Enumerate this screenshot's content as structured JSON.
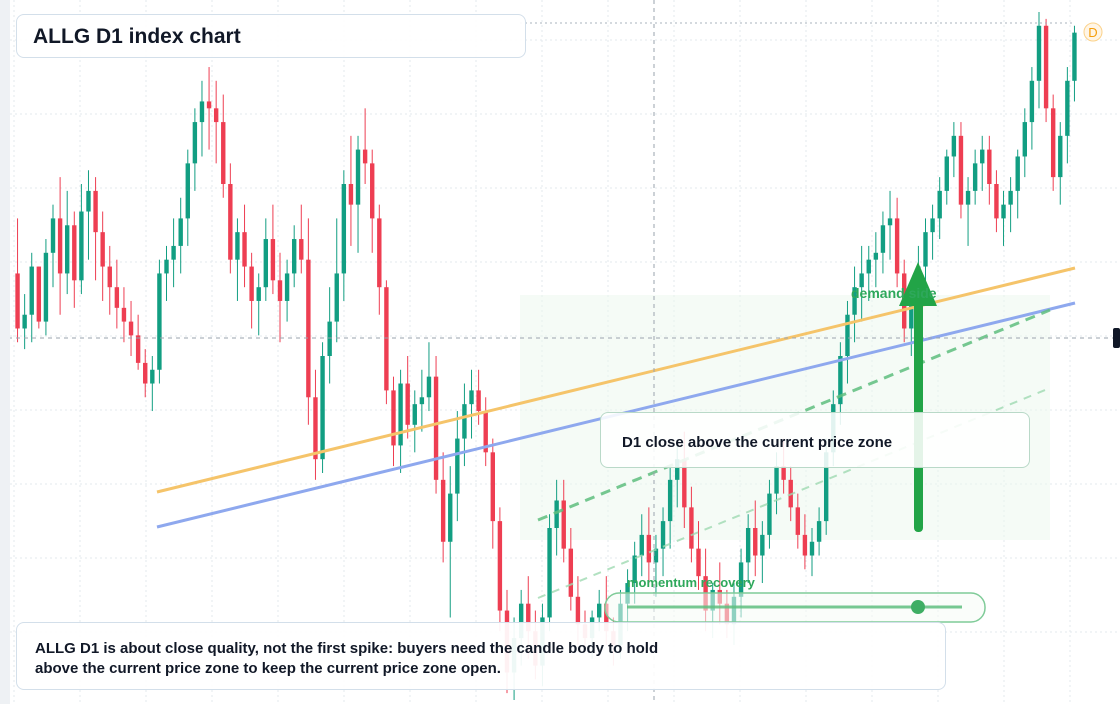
{
  "header": {
    "title": "ALLG D1 index chart"
  },
  "badge": {
    "label": "D",
    "color": "#f59e0b"
  },
  "callout": {
    "text": "D1 close above the current price zone"
  },
  "labels": {
    "demand": "demand side",
    "momentum": "momentum recovery"
  },
  "note": {
    "line1": "ALLG D1 is about close quality, not the first spike: buyers need the candle body to hold",
    "line2": "above the current price zone to keep the current price zone open."
  },
  "colors": {
    "up": "#129e82",
    "down": "#ee3e52",
    "accent": "#22a447",
    "trend_orange": "#f5c46a",
    "trend_blue": "#8ea8ee",
    "grid": "#e3e8ee"
  },
  "chart_data": {
    "type": "candlestick",
    "candles": [
      [
        0.62,
        0.7,
        0.52,
        0.54
      ],
      [
        0.54,
        0.59,
        0.51,
        0.56
      ],
      [
        0.56,
        0.65,
        0.52,
        0.63
      ],
      [
        0.63,
        0.63,
        0.54,
        0.55
      ],
      [
        0.55,
        0.67,
        0.53,
        0.65
      ],
      [
        0.65,
        0.72,
        0.6,
        0.7
      ],
      [
        0.7,
        0.76,
        0.56,
        0.62
      ],
      [
        0.62,
        0.74,
        0.59,
        0.69
      ],
      [
        0.69,
        0.71,
        0.57,
        0.61
      ],
      [
        0.61,
        0.75,
        0.59,
        0.71
      ],
      [
        0.71,
        0.77,
        0.64,
        0.74
      ],
      [
        0.74,
        0.76,
        0.61,
        0.68
      ],
      [
        0.68,
        0.71,
        0.58,
        0.63
      ],
      [
        0.63,
        0.66,
        0.56,
        0.6
      ],
      [
        0.6,
        0.64,
        0.54,
        0.57
      ],
      [
        0.57,
        0.6,
        0.52,
        0.55
      ],
      [
        0.55,
        0.58,
        0.5,
        0.53
      ],
      [
        0.53,
        0.56,
        0.48,
        0.49
      ],
      [
        0.49,
        0.51,
        0.44,
        0.46
      ],
      [
        0.46,
        0.5,
        0.42,
        0.48
      ],
      [
        0.48,
        0.64,
        0.46,
        0.62
      ],
      [
        0.62,
        0.66,
        0.58,
        0.64
      ],
      [
        0.64,
        0.7,
        0.6,
        0.66
      ],
      [
        0.66,
        0.73,
        0.62,
        0.7
      ],
      [
        0.7,
        0.8,
        0.66,
        0.78
      ],
      [
        0.78,
        0.86,
        0.74,
        0.84
      ],
      [
        0.84,
        0.9,
        0.79,
        0.87
      ],
      [
        0.87,
        0.92,
        0.8,
        0.86
      ],
      [
        0.86,
        0.9,
        0.78,
        0.84
      ],
      [
        0.84,
        0.88,
        0.73,
        0.75
      ],
      [
        0.75,
        0.78,
        0.62,
        0.64
      ],
      [
        0.64,
        0.7,
        0.58,
        0.68
      ],
      [
        0.68,
        0.72,
        0.6,
        0.63
      ],
      [
        0.63,
        0.65,
        0.54,
        0.58
      ],
      [
        0.58,
        0.62,
        0.53,
        0.6
      ],
      [
        0.6,
        0.7,
        0.58,
        0.67
      ],
      [
        0.67,
        0.72,
        0.59,
        0.61
      ],
      [
        0.61,
        0.65,
        0.52,
        0.58
      ],
      [
        0.58,
        0.64,
        0.55,
        0.62
      ],
      [
        0.62,
        0.69,
        0.6,
        0.67
      ],
      [
        0.67,
        0.72,
        0.62,
        0.64
      ],
      [
        0.64,
        0.7,
        0.4,
        0.44
      ],
      [
        0.44,
        0.48,
        0.32,
        0.35
      ],
      [
        0.35,
        0.52,
        0.33,
        0.5
      ],
      [
        0.5,
        0.6,
        0.46,
        0.55
      ],
      [
        0.55,
        0.7,
        0.52,
        0.62
      ],
      [
        0.62,
        0.77,
        0.58,
        0.75
      ],
      [
        0.75,
        0.82,
        0.66,
        0.72
      ],
      [
        0.72,
        0.82,
        0.65,
        0.8
      ],
      [
        0.8,
        0.86,
        0.75,
        0.78
      ],
      [
        0.78,
        0.8,
        0.65,
        0.7
      ],
      [
        0.7,
        0.72,
        0.56,
        0.6
      ],
      [
        0.6,
        0.61,
        0.43,
        0.45
      ],
      [
        0.45,
        0.47,
        0.34,
        0.37
      ],
      [
        0.37,
        0.48,
        0.33,
        0.46
      ],
      [
        0.46,
        0.5,
        0.38,
        0.4
      ],
      [
        0.4,
        0.45,
        0.36,
        0.43
      ],
      [
        0.43,
        0.48,
        0.39,
        0.44
      ],
      [
        0.44,
        0.52,
        0.42,
        0.47
      ],
      [
        0.47,
        0.5,
        0.3,
        0.32
      ],
      [
        0.32,
        0.36,
        0.2,
        0.23
      ],
      [
        0.23,
        0.34,
        0.12,
        0.3
      ],
      [
        0.3,
        0.42,
        0.26,
        0.38
      ],
      [
        0.38,
        0.46,
        0.34,
        0.43
      ],
      [
        0.43,
        0.48,
        0.38,
        0.45
      ],
      [
        0.45,
        0.48,
        0.4,
        0.42
      ],
      [
        0.42,
        0.44,
        0.34,
        0.36
      ],
      [
        0.36,
        0.38,
        0.22,
        0.26
      ],
      [
        0.26,
        0.28,
        0.1,
        0.13
      ],
      [
        0.13,
        0.16,
        0.01,
        0.04
      ],
      [
        0.04,
        0.12,
        0.0,
        0.09
      ],
      [
        0.09,
        0.16,
        0.05,
        0.14
      ],
      [
        0.14,
        0.18,
        0.06,
        0.1
      ],
      [
        0.1,
        0.13,
        0.03,
        0.05
      ],
      [
        0.05,
        0.14,
        0.02,
        0.12
      ],
      [
        0.12,
        0.27,
        0.1,
        0.25
      ],
      [
        0.25,
        0.32,
        0.21,
        0.29
      ],
      [
        0.29,
        0.32,
        0.2,
        0.22
      ],
      [
        0.22,
        0.25,
        0.13,
        0.15
      ],
      [
        0.15,
        0.18,
        0.08,
        0.11
      ],
      [
        0.11,
        0.13,
        0.07,
        0.09
      ],
      [
        0.09,
        0.13,
        0.06,
        0.12
      ],
      [
        0.12,
        0.16,
        0.1,
        0.14
      ],
      [
        0.14,
        0.18,
        0.08,
        0.1
      ],
      [
        0.1,
        0.12,
        0.05,
        0.08
      ],
      [
        0.08,
        0.16,
        0.06,
        0.14
      ],
      [
        0.14,
        0.19,
        0.1,
        0.17
      ],
      [
        0.17,
        0.23,
        0.14,
        0.21
      ],
      [
        0.21,
        0.27,
        0.18,
        0.24
      ],
      [
        0.24,
        0.28,
        0.17,
        0.2
      ],
      [
        0.2,
        0.24,
        0.15,
        0.22
      ],
      [
        0.22,
        0.28,
        0.18,
        0.26
      ],
      [
        0.26,
        0.34,
        0.22,
        0.32
      ],
      [
        0.32,
        0.37,
        0.28,
        0.35
      ],
      [
        0.35,
        0.39,
        0.25,
        0.28
      ],
      [
        0.28,
        0.31,
        0.2,
        0.22
      ],
      [
        0.22,
        0.26,
        0.16,
        0.18
      ],
      [
        0.18,
        0.22,
        0.1,
        0.13
      ],
      [
        0.13,
        0.17,
        0.09,
        0.16
      ],
      [
        0.16,
        0.2,
        0.11,
        0.14
      ],
      [
        0.14,
        0.16,
        0.09,
        0.11
      ],
      [
        0.11,
        0.17,
        0.08,
        0.15
      ],
      [
        0.15,
        0.22,
        0.12,
        0.2
      ],
      [
        0.2,
        0.27,
        0.17,
        0.25
      ],
      [
        0.25,
        0.29,
        0.18,
        0.21
      ],
      [
        0.21,
        0.26,
        0.17,
        0.24
      ],
      [
        0.24,
        0.32,
        0.22,
        0.3
      ],
      [
        0.3,
        0.36,
        0.27,
        0.34
      ],
      [
        0.34,
        0.38,
        0.3,
        0.32
      ],
      [
        0.32,
        0.34,
        0.26,
        0.28
      ],
      [
        0.28,
        0.3,
        0.22,
        0.24
      ],
      [
        0.24,
        0.27,
        0.19,
        0.21
      ],
      [
        0.21,
        0.25,
        0.18,
        0.23
      ],
      [
        0.23,
        0.28,
        0.21,
        0.26
      ],
      [
        0.26,
        0.38,
        0.24,
        0.36
      ],
      [
        0.36,
        0.45,
        0.34,
        0.43
      ],
      [
        0.43,
        0.52,
        0.4,
        0.5
      ],
      [
        0.5,
        0.58,
        0.46,
        0.56
      ],
      [
        0.56,
        0.63,
        0.52,
        0.6
      ],
      [
        0.6,
        0.66,
        0.55,
        0.62
      ],
      [
        0.62,
        0.66,
        0.58,
        0.64
      ],
      [
        0.64,
        0.68,
        0.6,
        0.65
      ],
      [
        0.65,
        0.71,
        0.62,
        0.69
      ],
      [
        0.69,
        0.74,
        0.64,
        0.7
      ],
      [
        0.7,
        0.73,
        0.6,
        0.62
      ],
      [
        0.62,
        0.64,
        0.52,
        0.54
      ],
      [
        0.54,
        0.6,
        0.5,
        0.58
      ],
      [
        0.58,
        0.66,
        0.55,
        0.63
      ],
      [
        0.63,
        0.7,
        0.6,
        0.68
      ],
      [
        0.68,
        0.72,
        0.64,
        0.7
      ],
      [
        0.7,
        0.76,
        0.67,
        0.74
      ],
      [
        0.74,
        0.8,
        0.72,
        0.79
      ],
      [
        0.79,
        0.84,
        0.76,
        0.82
      ],
      [
        0.82,
        0.84,
        0.7,
        0.72
      ],
      [
        0.72,
        0.76,
        0.66,
        0.74
      ],
      [
        0.74,
        0.8,
        0.72,
        0.78
      ],
      [
        0.78,
        0.82,
        0.74,
        0.8
      ],
      [
        0.8,
        0.82,
        0.72,
        0.75
      ],
      [
        0.75,
        0.77,
        0.68,
        0.7
      ],
      [
        0.7,
        0.74,
        0.66,
        0.72
      ],
      [
        0.72,
        0.76,
        0.68,
        0.74
      ],
      [
        0.74,
        0.8,
        0.7,
        0.79
      ],
      [
        0.79,
        0.86,
        0.76,
        0.84
      ],
      [
        0.84,
        0.92,
        0.8,
        0.9
      ],
      [
        0.9,
        1.0,
        0.86,
        0.98
      ],
      [
        0.98,
        0.99,
        0.84,
        0.86
      ],
      [
        0.86,
        0.88,
        0.74,
        0.76
      ],
      [
        0.76,
        0.84,
        0.72,
        0.82
      ],
      [
        0.82,
        0.92,
        0.78,
        0.9
      ],
      [
        0.9,
        0.98,
        0.87,
        0.97
      ]
    ],
    "grid": true
  }
}
